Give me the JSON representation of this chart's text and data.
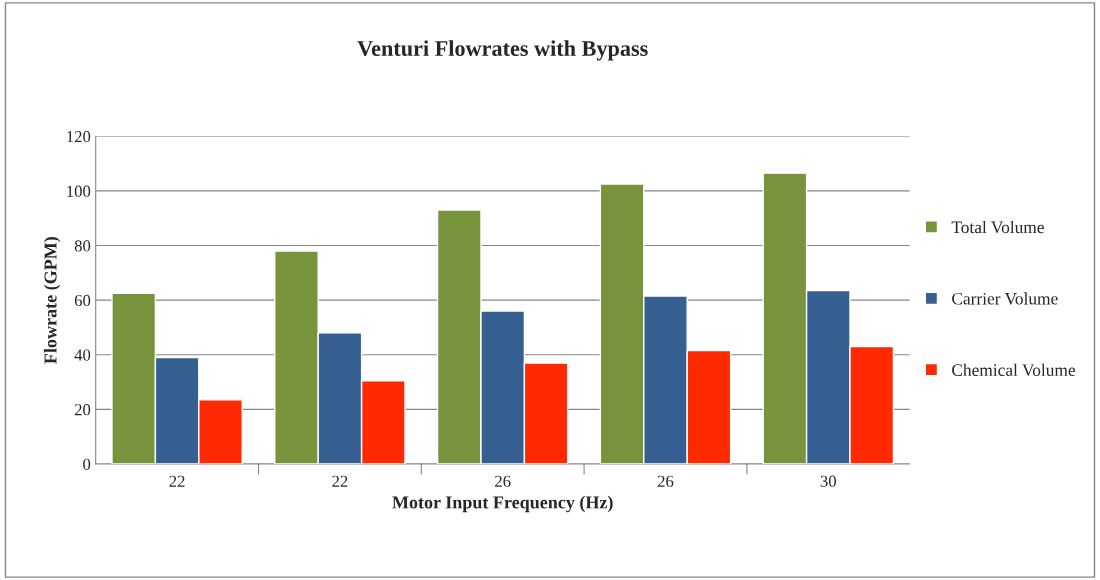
{
  "chart_data": {
    "type": "bar",
    "title": "Venturi Flowrates with Bypass",
    "xlabel": "Motor Input Frequency (Hz)",
    "ylabel": "Flowrate (GPM)",
    "categories": [
      "22",
      "22",
      "26",
      "26",
      "30"
    ],
    "series": [
      {
        "name": "Total Volume",
        "color": "#77933c",
        "values": [
          62.5,
          78,
          93,
          102.5,
          106.5
        ]
      },
      {
        "name": "Carrier Volume",
        "color": "#366092",
        "values": [
          39,
          48,
          56,
          61.5,
          63.5
        ]
      },
      {
        "name": "Chemical Volume",
        "color": "#ff2a00",
        "values": [
          23.5,
          30.5,
          37,
          41.5,
          43
        ]
      }
    ],
    "ylim": [
      0,
      120
    ],
    "yticks": [
      0,
      20,
      40,
      60,
      80,
      100,
      120
    ],
    "grid": "y",
    "legend": "right"
  }
}
